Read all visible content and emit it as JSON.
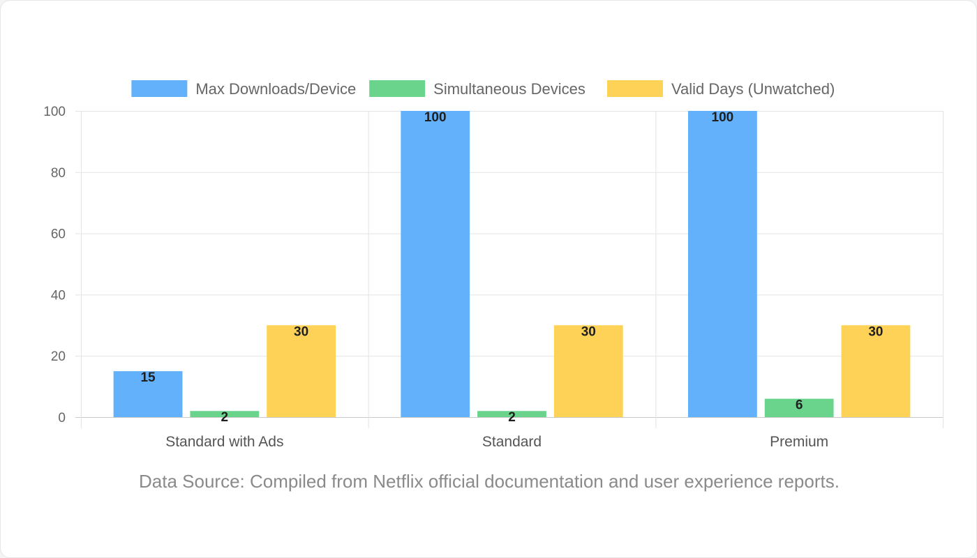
{
  "chart_data": {
    "type": "bar",
    "title": "",
    "xlabel": "",
    "ylabel": "",
    "categories": [
      "Standard with Ads",
      "Standard",
      "Premium"
    ],
    "series": [
      {
        "name": "Max Downloads/Device",
        "color": "#63b0fb",
        "values": [
          15,
          100,
          100
        ]
      },
      {
        "name": "Simultaneous Devices",
        "color": "#6ad48d",
        "values": [
          2,
          2,
          6
        ]
      },
      {
        "name": "Valid Days (Unwatched)",
        "color": "#fed257",
        "values": [
          30,
          30,
          30
        ]
      }
    ],
    "ylim": [
      0,
      100
    ],
    "yticks": [
      0,
      20,
      40,
      60,
      80,
      100
    ],
    "grid": true,
    "legend_position": "top-center",
    "data_labels": true
  },
  "footnote": "Data Source: Compiled from Netflix official documentation and user experience reports."
}
